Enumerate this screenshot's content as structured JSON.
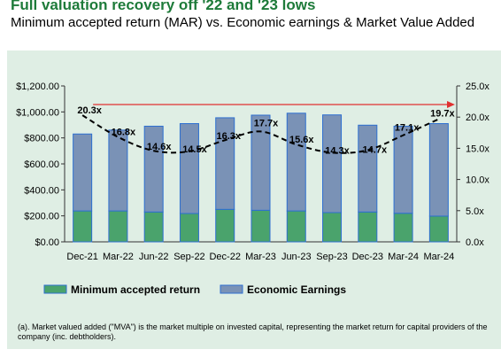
{
  "header": {
    "title": "Full valuation recovery off '22 and '23 lows",
    "subtitle": "Minimum accepted return (MAR) vs. Economic earnings & Market Value Added"
  },
  "footnote": "(a). Market valued added (\"MVA\") is the market multiple on invested capital, representing the market return for capital providers of the company (inc. debtholders).",
  "colors": {
    "mar": "#4aa36c",
    "economic_earnings": "#7a92b6",
    "bar_border": "#2d6fd0",
    "trend_arrow": "#e03030",
    "mva_line": "#000000",
    "panel_background": "#dfeee4"
  },
  "chart_data": {
    "type": "bar",
    "stacked": true,
    "categories": [
      "Dec-21",
      "Mar-22",
      "Jun-22",
      "Sep-22",
      "Dec-22",
      "Mar-23",
      "Jun-23",
      "Sep-23",
      "Dec-23",
      "Mar-24",
      "Mar-24"
    ],
    "series": [
      {
        "name": "Minimum accepted return",
        "axis": "left",
        "values": [
          238,
          238,
          230,
          218,
          250,
          243,
          238,
          225,
          230,
          220,
          198
        ]
      },
      {
        "name": "Economic Earnings",
        "axis": "left",
        "values": [
          592,
          622,
          660,
          692,
          705,
          732,
          752,
          752,
          668,
          670,
          712
        ]
      }
    ],
    "line_series": {
      "axis": "right",
      "style": "dashed",
      "values": [
        20.3,
        16.8,
        14.6,
        14.5,
        16.3,
        17.7,
        15.6,
        14.3,
        14.7,
        17.1,
        19.7
      ],
      "labels": [
        "20.3x",
        "16.8x",
        "14.6x",
        "14.5x",
        "16.3x",
        "17.7x",
        "15.6x",
        "14.3x",
        "14.7x",
        "17.1x",
        "19.7x"
      ]
    },
    "y_left": {
      "ylim": [
        0,
        1200
      ],
      "ticks": [
        0,
        200,
        400,
        600,
        800,
        1000,
        1200
      ],
      "tick_labels": [
        "$0.00",
        "$200.00",
        "$400.00",
        "$600.00",
        "$800.00",
        "$1,000.00",
        "$1,200.00"
      ]
    },
    "y_right": {
      "ylim": [
        0,
        25
      ],
      "ticks": [
        0,
        5,
        10,
        15,
        20,
        25
      ],
      "tick_labels": [
        "0.0x",
        "5.0x",
        "10.0x",
        "15.0x",
        "20.0x",
        "25.0x"
      ]
    },
    "legend": {
      "placement": "bottom-left",
      "entries": [
        "Minimum accepted return",
        "Economic Earnings"
      ]
    },
    "annotations": [
      "trend-arrow"
    ],
    "grid": false
  }
}
